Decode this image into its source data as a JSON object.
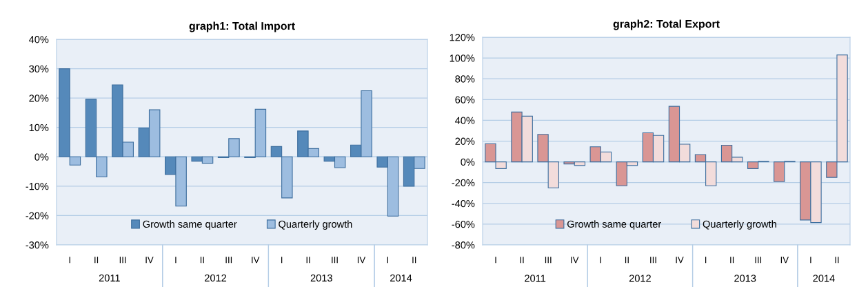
{
  "chart_data": [
    {
      "type": "bar",
      "title": "graph1: Total Import",
      "categories": [
        "I",
        "II",
        "III",
        "IV",
        "I",
        "II",
        "III",
        "IV",
        "I",
        "II",
        "III",
        "IV",
        "I",
        "II"
      ],
      "annotations": [
        "2011",
        "2012",
        "2013",
        "2014"
      ],
      "series": [
        {
          "name": "Growth same quarter",
          "color": "#5589ba",
          "values": [
            30,
            19.6,
            24.5,
            9.8,
            -6,
            -1.5,
            -0.3,
            -0.3,
            3.5,
            8.8,
            -1.5,
            4,
            -3.5,
            -10
          ]
        },
        {
          "name": "Quarterly growth",
          "color": "#9dbde0",
          "values": [
            -2.8,
            -6.8,
            5,
            16,
            -16.8,
            -2.2,
            6.2,
            16.2,
            -14,
            2.8,
            -3.7,
            22.5,
            -20.2,
            -4
          ]
        }
      ],
      "ylim": [
        -30,
        40
      ],
      "yticks": [
        {
          "value": -30,
          "label": "-30%"
        },
        {
          "value": -20,
          "label": "-20%"
        },
        {
          "value": -10,
          "label": "-10%"
        },
        {
          "value": 0,
          "label": "0%"
        },
        {
          "value": 10,
          "label": "10%"
        },
        {
          "value": 20,
          "label": "20%"
        },
        {
          "value": 30,
          "label": "30%"
        },
        {
          "value": 40,
          "label": "40%"
        }
      ],
      "grid": "y",
      "legend": "bottom"
    },
    {
      "type": "bar",
      "title": "graph2: Total Export",
      "categories": [
        "I",
        "II",
        "III",
        "IV",
        "I",
        "II",
        "III",
        "IV",
        "I",
        "II",
        "III",
        "IV",
        "I",
        "II"
      ],
      "annotations": [
        "2011",
        "2012",
        "2013",
        "2014"
      ],
      "series": [
        {
          "name": "Growth same quarter",
          "color": "#d99694",
          "values": [
            17.5,
            48,
            26.5,
            -2,
            14.5,
            -23,
            28,
            53.5,
            7,
            16,
            -6.5,
            -19,
            -56,
            -15
          ]
        },
        {
          "name": "Quarterly growth",
          "color": "#f2dcdb",
          "values": [
            -6.5,
            44,
            -25,
            -3.5,
            9.5,
            -3.5,
            25.5,
            17,
            -23,
            4.5,
            0.5,
            0.5,
            -58.5,
            103
          ]
        }
      ],
      "ylim": [
        -80,
        120
      ],
      "yticks": [
        {
          "value": -80,
          "label": "-80%"
        },
        {
          "value": -60,
          "label": "-60%"
        },
        {
          "value": -40,
          "label": "-40%"
        },
        {
          "value": -20,
          "label": "-20%"
        },
        {
          "value": 0,
          "label": "0%"
        },
        {
          "value": 20,
          "label": "20%"
        },
        {
          "value": 40,
          "label": "40%"
        },
        {
          "value": 60,
          "label": "60%"
        },
        {
          "value": 80,
          "label": "80%"
        },
        {
          "value": 100,
          "label": "100%"
        },
        {
          "value": 120,
          "label": "120%"
        }
      ],
      "grid": "y",
      "legend": "bottom"
    }
  ]
}
